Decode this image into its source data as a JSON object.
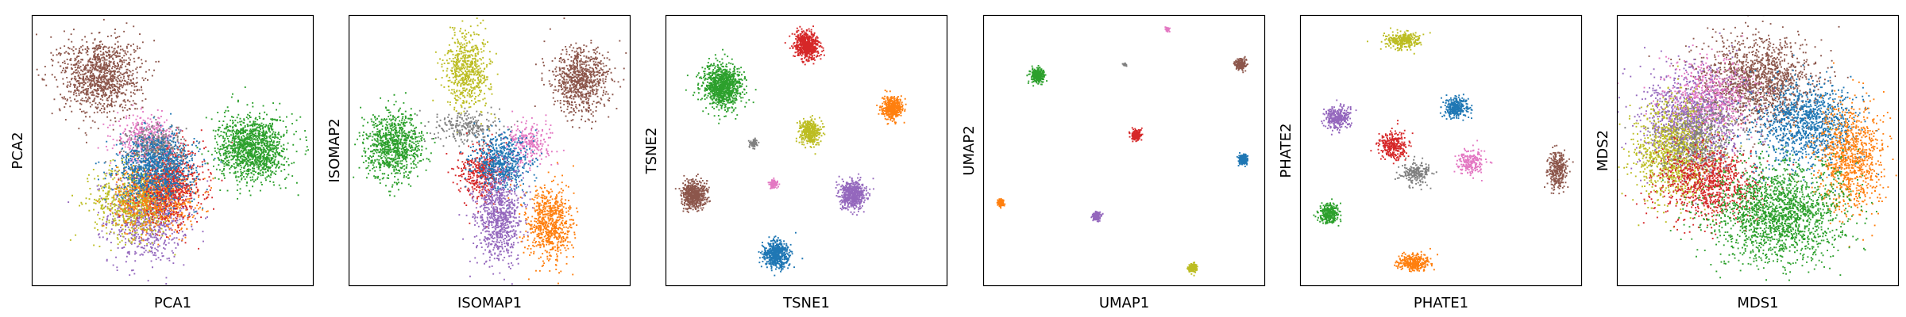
{
  "colors": {
    "blue": "#1f77b4",
    "orange": "#ff7f0e",
    "green": "#2ca02c",
    "red": "#d62728",
    "purple": "#9467bd",
    "brown": "#8c564b",
    "pink": "#e377c2",
    "gray": "#7f7f7f",
    "olive": "#bcbd22"
  },
  "chart_data": [
    {
      "type": "scatter",
      "xlabel": "PCA1",
      "ylabel": "PCA2",
      "xlim": [
        0,
        1
      ],
      "ylim": [
        0,
        1
      ],
      "grid": false,
      "clusters": [
        {
          "color": "purple",
          "cx": 0.41,
          "cy": 0.27,
          "sx": 0.07,
          "sy": 0.09,
          "n": 900
        },
        {
          "color": "olive",
          "cx": 0.36,
          "cy": 0.32,
          "sx": 0.07,
          "sy": 0.07,
          "n": 700
        },
        {
          "color": "orange",
          "cx": 0.44,
          "cy": 0.33,
          "sx": 0.07,
          "sy": 0.06,
          "n": 700
        },
        {
          "color": "red",
          "cx": 0.49,
          "cy": 0.38,
          "sx": 0.06,
          "sy": 0.07,
          "n": 700
        },
        {
          "color": "pink",
          "cx": 0.4,
          "cy": 0.55,
          "sx": 0.05,
          "sy": 0.04,
          "n": 350
        },
        {
          "color": "gray",
          "cx": 0.44,
          "cy": 0.52,
          "sx": 0.05,
          "sy": 0.04,
          "n": 350
        },
        {
          "color": "blue",
          "cx": 0.44,
          "cy": 0.44,
          "sx": 0.07,
          "sy": 0.06,
          "n": 900
        },
        {
          "color": "brown",
          "cx": 0.24,
          "cy": 0.78,
          "sx": 0.07,
          "sy": 0.07,
          "n": 1100
        },
        {
          "color": "green",
          "cx": 0.78,
          "cy": 0.51,
          "sx": 0.06,
          "sy": 0.06,
          "n": 1300
        }
      ]
    },
    {
      "type": "scatter",
      "xlabel": "ISOMAP1",
      "ylabel": "ISOMAP2",
      "xlim": [
        0,
        1
      ],
      "ylim": [
        0,
        1
      ],
      "grid": false,
      "clusters": [
        {
          "color": "olive",
          "cx": 0.42,
          "cy": 0.8,
          "sx": 0.04,
          "sy": 0.07,
          "n": 600
        },
        {
          "color": "brown",
          "cx": 0.82,
          "cy": 0.76,
          "sx": 0.05,
          "sy": 0.06,
          "n": 800
        },
        {
          "color": "green",
          "cx": 0.16,
          "cy": 0.52,
          "sx": 0.05,
          "sy": 0.06,
          "n": 900
        },
        {
          "color": "gray",
          "cx": 0.42,
          "cy": 0.59,
          "sx": 0.06,
          "sy": 0.03,
          "n": 250
        },
        {
          "color": "pink",
          "cx": 0.64,
          "cy": 0.53,
          "sx": 0.04,
          "sy": 0.04,
          "n": 250
        },
        {
          "color": "red",
          "cx": 0.47,
          "cy": 0.42,
          "sx": 0.04,
          "sy": 0.05,
          "n": 400
        },
        {
          "color": "blue",
          "cx": 0.54,
          "cy": 0.46,
          "sx": 0.05,
          "sy": 0.05,
          "n": 600
        },
        {
          "color": "purple",
          "cx": 0.53,
          "cy": 0.26,
          "sx": 0.04,
          "sy": 0.08,
          "n": 800
        },
        {
          "color": "orange",
          "cx": 0.71,
          "cy": 0.23,
          "sx": 0.04,
          "sy": 0.07,
          "n": 700
        }
      ]
    },
    {
      "type": "scatter",
      "xlabel": "TSNE1",
      "ylabel": "TSNE2",
      "xlim": [
        0,
        1
      ],
      "ylim": [
        0,
        1
      ],
      "grid": false,
      "clusters": [
        {
          "color": "green",
          "cx": 0.2,
          "cy": 0.74,
          "sx": 0.035,
          "sy": 0.04,
          "n": 1000
        },
        {
          "color": "red",
          "cx": 0.5,
          "cy": 0.89,
          "sx": 0.022,
          "sy": 0.025,
          "n": 600
        },
        {
          "color": "orange",
          "cx": 0.8,
          "cy": 0.66,
          "sx": 0.018,
          "sy": 0.02,
          "n": 400
        },
        {
          "color": "olive",
          "cx": 0.51,
          "cy": 0.57,
          "sx": 0.018,
          "sy": 0.022,
          "n": 400
        },
        {
          "color": "gray",
          "cx": 0.31,
          "cy": 0.53,
          "sx": 0.007,
          "sy": 0.008,
          "n": 60
        },
        {
          "color": "pink",
          "cx": 0.38,
          "cy": 0.38,
          "sx": 0.008,
          "sy": 0.009,
          "n": 80
        },
        {
          "color": "brown",
          "cx": 0.1,
          "cy": 0.34,
          "sx": 0.022,
          "sy": 0.025,
          "n": 600
        },
        {
          "color": "purple",
          "cx": 0.66,
          "cy": 0.34,
          "sx": 0.022,
          "sy": 0.025,
          "n": 600
        },
        {
          "color": "blue",
          "cx": 0.39,
          "cy": 0.12,
          "sx": 0.022,
          "sy": 0.025,
          "n": 600
        }
      ]
    },
    {
      "type": "scatter",
      "xlabel": "UMAP1",
      "ylabel": "UMAP2",
      "xlim": [
        0,
        1
      ],
      "ylim": [
        0,
        1
      ],
      "grid": false,
      "clusters": [
        {
          "color": "pink",
          "cx": 0.65,
          "cy": 0.95,
          "sx": 0.004,
          "sy": 0.005,
          "n": 40
        },
        {
          "color": "green",
          "cx": 0.19,
          "cy": 0.78,
          "sx": 0.012,
          "sy": 0.013,
          "n": 300
        },
        {
          "color": "gray",
          "cx": 0.5,
          "cy": 0.82,
          "sx": 0.003,
          "sy": 0.003,
          "n": 20
        },
        {
          "color": "brown",
          "cx": 0.91,
          "cy": 0.82,
          "sx": 0.009,
          "sy": 0.01,
          "n": 200
        },
        {
          "color": "red",
          "cx": 0.54,
          "cy": 0.56,
          "sx": 0.008,
          "sy": 0.01,
          "n": 200
        },
        {
          "color": "blue",
          "cx": 0.92,
          "cy": 0.47,
          "sx": 0.008,
          "sy": 0.009,
          "n": 200
        },
        {
          "color": "orange",
          "cx": 0.06,
          "cy": 0.31,
          "sx": 0.006,
          "sy": 0.007,
          "n": 120
        },
        {
          "color": "purple",
          "cx": 0.4,
          "cy": 0.26,
          "sx": 0.008,
          "sy": 0.008,
          "n": 150
        },
        {
          "color": "olive",
          "cx": 0.74,
          "cy": 0.07,
          "sx": 0.007,
          "sy": 0.008,
          "n": 150
        }
      ]
    },
    {
      "type": "scatter",
      "xlabel": "PHATE1",
      "ylabel": "PHATE2",
      "xlim": [
        0,
        1
      ],
      "ylim": [
        0,
        1
      ],
      "grid": false,
      "clusters": [
        {
          "color": "olive",
          "cx": 0.36,
          "cy": 0.91,
          "sx": 0.03,
          "sy": 0.015,
          "n": 300
        },
        {
          "color": "purple",
          "cx": 0.13,
          "cy": 0.62,
          "sx": 0.022,
          "sy": 0.022,
          "n": 300
        },
        {
          "color": "blue",
          "cx": 0.55,
          "cy": 0.66,
          "sx": 0.022,
          "sy": 0.02,
          "n": 300
        },
        {
          "color": "red",
          "cx": 0.33,
          "cy": 0.52,
          "sx": 0.025,
          "sy": 0.025,
          "n": 300
        },
        {
          "color": "pink",
          "cx": 0.6,
          "cy": 0.46,
          "sx": 0.025,
          "sy": 0.025,
          "n": 200
        },
        {
          "color": "gray",
          "cx": 0.41,
          "cy": 0.42,
          "sx": 0.025,
          "sy": 0.02,
          "n": 200
        },
        {
          "color": "brown",
          "cx": 0.91,
          "cy": 0.43,
          "sx": 0.015,
          "sy": 0.035,
          "n": 300
        },
        {
          "color": "green",
          "cx": 0.1,
          "cy": 0.27,
          "sx": 0.018,
          "sy": 0.018,
          "n": 300
        },
        {
          "color": "orange",
          "cx": 0.4,
          "cy": 0.09,
          "sx": 0.03,
          "sy": 0.015,
          "n": 300
        }
      ]
    },
    {
      "type": "scatter",
      "xlabel": "MDS1",
      "ylabel": "MDS2",
      "xlim": [
        0,
        1
      ],
      "ylim": [
        0,
        1
      ],
      "grid": false,
      "clusters": [
        {
          "color": "brown",
          "cx": 0.5,
          "cy": 0.76,
          "sx": 0.1,
          "sy": 0.08,
          "n": 1400
        },
        {
          "color": "purple",
          "cx": 0.26,
          "cy": 0.62,
          "sx": 0.09,
          "sy": 0.09,
          "n": 1100
        },
        {
          "color": "pink",
          "cx": 0.33,
          "cy": 0.7,
          "sx": 0.08,
          "sy": 0.07,
          "n": 500
        },
        {
          "color": "olive",
          "cx": 0.2,
          "cy": 0.49,
          "sx": 0.07,
          "sy": 0.09,
          "n": 1100
        },
        {
          "color": "gray",
          "cx": 0.3,
          "cy": 0.54,
          "sx": 0.07,
          "sy": 0.07,
          "n": 500
        },
        {
          "color": "red",
          "cx": 0.33,
          "cy": 0.38,
          "sx": 0.09,
          "sy": 0.07,
          "n": 900
        },
        {
          "color": "blue",
          "cx": 0.67,
          "cy": 0.6,
          "sx": 0.09,
          "sy": 0.08,
          "n": 1100
        },
        {
          "color": "orange",
          "cx": 0.83,
          "cy": 0.48,
          "sx": 0.06,
          "sy": 0.1,
          "n": 900
        },
        {
          "color": "green",
          "cx": 0.57,
          "cy": 0.27,
          "sx": 0.12,
          "sy": 0.09,
          "n": 1800
        }
      ]
    }
  ]
}
